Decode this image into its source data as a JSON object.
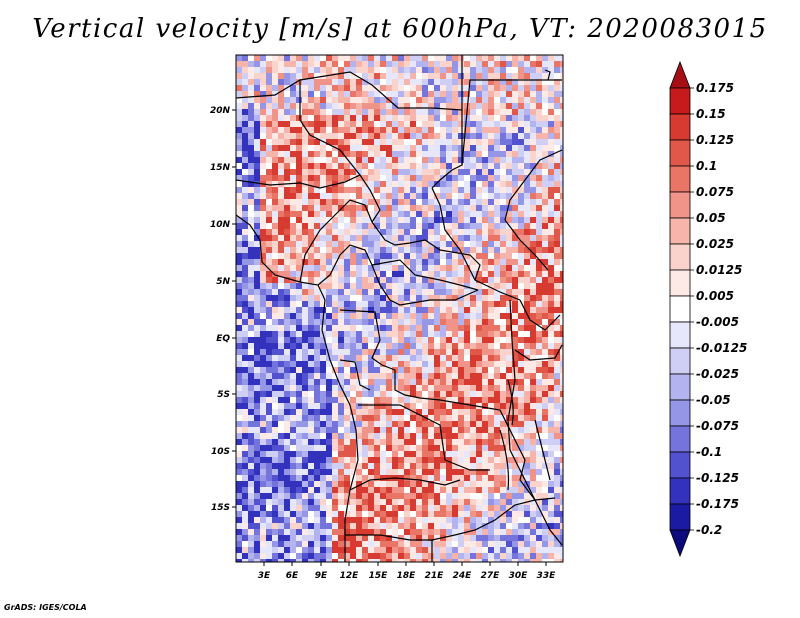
{
  "title": "Vertical velocity [m/s] at 600hPa, VT: 2020083015",
  "footer": "GrADS: IGES/COLA",
  "map": {
    "region": "Central and Southern Africa",
    "lon_range": [
      0,
      35
    ],
    "lat_range": [
      -20,
      25
    ],
    "lat_labels": [
      "20N",
      "15N",
      "10N",
      "5N",
      "EQ",
      "5S",
      "10S",
      "15S"
    ],
    "lon_labels": [
      "3E",
      "6E",
      "9E",
      "12E",
      "15E",
      "18E",
      "21E",
      "24E",
      "27E",
      "30E",
      "33E"
    ],
    "colors": {
      "land_border": "#000000",
      "background": "#ffffff"
    }
  },
  "colorbar": {
    "labels": [
      "0.175",
      "0.15",
      "0.125",
      "0.1",
      "0.075",
      "0.05",
      "0.025",
      "0.0125",
      "0.005",
      "-0.005",
      "-0.0125",
      "-0.025",
      "-0.05",
      "-0.075",
      "-0.1",
      "-0.125",
      "-0.175",
      "-0.2"
    ],
    "colors": [
      "#a50f15",
      "#c61a1d",
      "#d63a31",
      "#e0584a",
      "#e87565",
      "#f0948a",
      "#f6b4aa",
      "#fbd3cd",
      "#fde9e6",
      "#ffffff",
      "#e7e7fb",
      "#cfcff5",
      "#b3b3ef",
      "#9696e6",
      "#7474dc",
      "#5252cf",
      "#3232bd",
      "#1a1aa3",
      "#0b0b7d"
    ]
  }
}
